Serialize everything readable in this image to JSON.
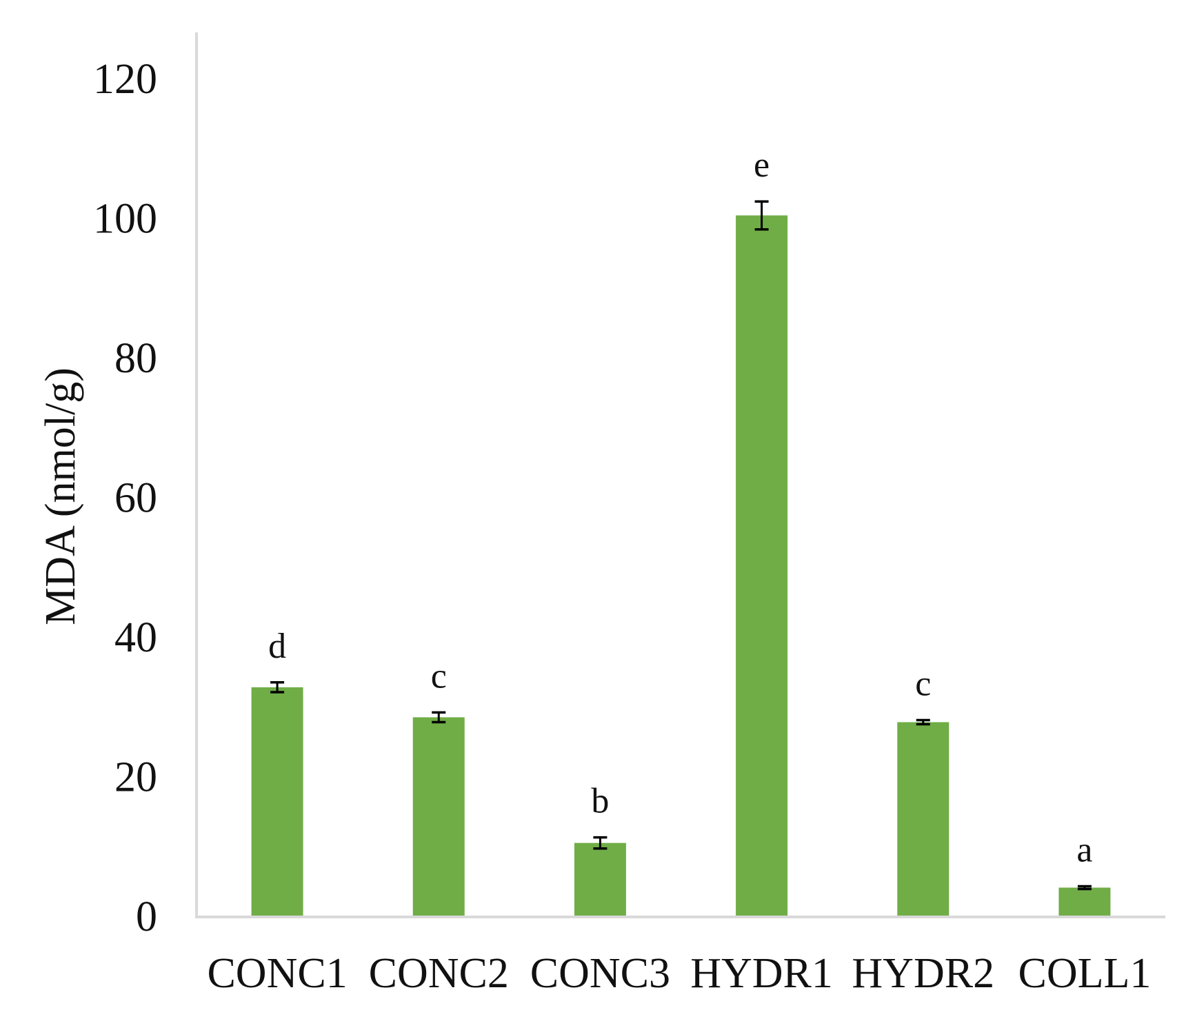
{
  "chart_data": {
    "type": "bar",
    "title": "",
    "xlabel": "",
    "ylabel": "MDA (nmol/g)",
    "ylim": [
      0,
      120
    ],
    "yticks": [
      0,
      20,
      40,
      60,
      80,
      100,
      120
    ],
    "grid": false,
    "categories": [
      "CONC1",
      "CONC2",
      "CONC3",
      "HYDR1",
      "HYDR2",
      "COLL1"
    ],
    "values": [
      32.9,
      28.6,
      10.6,
      100.5,
      27.9,
      4.2
    ],
    "errors": [
      0.7,
      0.7,
      0.8,
      2.0,
      0.3,
      0.2
    ],
    "significance_letters": [
      "d",
      "c",
      "b",
      "e",
      "c",
      "a"
    ],
    "bar_color": "#70AD47",
    "axis_color": "#D9D9D9",
    "error_bar_color": "#000000"
  }
}
